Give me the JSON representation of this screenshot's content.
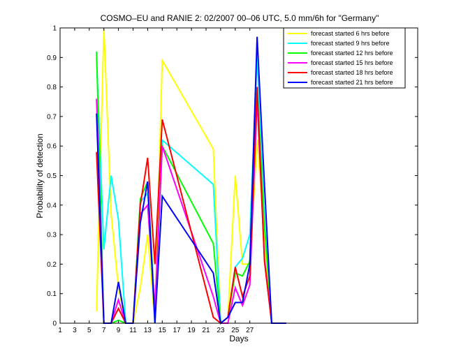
{
  "chart_data": {
    "type": "line",
    "title": "COSMO–EU and RANIE 2: 02/2007 00–06 UTC, 5.0 mm/6h for \"Germany\"",
    "xlabel": "Days",
    "ylabel": "Probability of detection",
    "xlim": [
      1,
      50
    ],
    "ylim": [
      0,
      1
    ],
    "xticks": [
      "1",
      "3",
      "5",
      "7",
      "9",
      "11",
      "13",
      "15",
      "17",
      "19",
      "21",
      "23",
      "25",
      "27"
    ],
    "yticks": [
      "0",
      "0.1",
      "0.2",
      "0.3",
      "0.4",
      "0.5",
      "0.6",
      "0.7",
      "0.8",
      "0.9",
      "1"
    ],
    "grid": false,
    "legend_position": "top-right",
    "series": [
      {
        "name": "forecast started 6 hrs before",
        "color": "#ffff00",
        "points": [
          [
            6,
            0.04
          ],
          [
            7,
            1.0
          ],
          [
            8,
            0.37
          ],
          [
            9,
            0.12
          ],
          [
            10,
            0.0
          ],
          [
            11,
            0.0
          ],
          [
            12,
            0.12
          ],
          [
            13,
            0.3
          ],
          [
            14,
            0.0
          ],
          [
            15,
            0.89
          ],
          [
            22,
            0.59
          ],
          [
            23,
            0.0
          ],
          [
            24,
            0.02
          ],
          [
            25,
            0.5
          ],
          [
            26,
            0.2
          ],
          [
            27,
            0.2
          ],
          [
            28,
            0.62
          ],
          [
            29,
            0.3
          ],
          [
            30,
            0.0
          ]
        ]
      },
      {
        "name": "forecast started 9 hrs before",
        "color": "#00ffff",
        "points": [
          [
            6,
            0.9
          ],
          [
            7,
            0.25
          ],
          [
            8,
            0.5
          ],
          [
            9,
            0.35
          ],
          [
            10,
            0.0
          ],
          [
            11,
            0.0
          ],
          [
            12,
            0.41
          ],
          [
            13,
            0.44
          ],
          [
            14,
            0.0
          ],
          [
            15,
            0.62
          ],
          [
            22,
            0.47
          ],
          [
            23,
            0.0
          ],
          [
            24,
            0.02
          ],
          [
            25,
            0.19
          ],
          [
            26,
            0.22
          ],
          [
            27,
            0.3
          ],
          [
            28,
            0.9
          ],
          [
            29,
            0.35
          ],
          [
            30,
            0.0
          ]
        ]
      },
      {
        "name": "forecast started 12 hrs before",
        "color": "#00ff00",
        "points": [
          [
            6,
            0.92
          ],
          [
            7,
            0.0
          ],
          [
            8,
            0.0
          ],
          [
            9,
            0.01
          ],
          [
            10,
            0.0
          ],
          [
            11,
            0.0
          ],
          [
            12,
            0.42
          ],
          [
            13,
            0.48
          ],
          [
            14,
            0.04
          ],
          [
            15,
            0.6
          ],
          [
            22,
            0.27
          ],
          [
            23,
            0.0
          ],
          [
            24,
            0.02
          ],
          [
            25,
            0.17
          ],
          [
            26,
            0.16
          ],
          [
            27,
            0.21
          ],
          [
            28,
            0.8
          ],
          [
            29,
            0.33
          ],
          [
            30,
            0.0
          ]
        ]
      },
      {
        "name": "forecast started 15 hrs before",
        "color": "#ff00ff",
        "points": [
          [
            6,
            0.76
          ],
          [
            7,
            0.0
          ],
          [
            8,
            0.0
          ],
          [
            9,
            0.08
          ],
          [
            10,
            0.0
          ],
          [
            11,
            0.0
          ],
          [
            12,
            0.37
          ],
          [
            13,
            0.4
          ],
          [
            14,
            0.05
          ],
          [
            15,
            0.6
          ],
          [
            22,
            0.09
          ],
          [
            23,
            0.0
          ],
          [
            24,
            0.0
          ],
          [
            25,
            0.12
          ],
          [
            26,
            0.06
          ],
          [
            27,
            0.13
          ],
          [
            28,
            0.76
          ],
          [
            29,
            0.22
          ],
          [
            30,
            0.0
          ]
        ]
      },
      {
        "name": "forecast started 18 hrs before",
        "color": "#ff0000",
        "points": [
          [
            6,
            0.58
          ],
          [
            7,
            0.0
          ],
          [
            8,
            0.0
          ],
          [
            9,
            0.05
          ],
          [
            10,
            0.0
          ],
          [
            11,
            0.0
          ],
          [
            12,
            0.4
          ],
          [
            13,
            0.56
          ],
          [
            14,
            0.2
          ],
          [
            15,
            0.69
          ],
          [
            22,
            0.02
          ],
          [
            23,
            0.0
          ],
          [
            24,
            0.02
          ],
          [
            25,
            0.19
          ],
          [
            26,
            0.09
          ],
          [
            27,
            0.16
          ],
          [
            28,
            0.8
          ],
          [
            29,
            0.21
          ],
          [
            30,
            0.0
          ]
        ]
      },
      {
        "name": "forecast started 21 hrs before",
        "color": "#0000ff",
        "points": [
          [
            6,
            0.71
          ],
          [
            7,
            0.0
          ],
          [
            8,
            0.0
          ],
          [
            9,
            0.14
          ],
          [
            10,
            0.0
          ],
          [
            11,
            0.0
          ],
          [
            12,
            0.34
          ],
          [
            13,
            0.48
          ],
          [
            14,
            0.0
          ],
          [
            15,
            0.43
          ],
          [
            22,
            0.17
          ],
          [
            23,
            0.0
          ],
          [
            24,
            0.02
          ],
          [
            25,
            0.07
          ],
          [
            26,
            0.07
          ],
          [
            27,
            0.2
          ],
          [
            28,
            0.97
          ],
          [
            29,
            0.47
          ],
          [
            30,
            0.0
          ],
          [
            31,
            0.0
          ],
          [
            32,
            0.0
          ]
        ]
      }
    ]
  }
}
